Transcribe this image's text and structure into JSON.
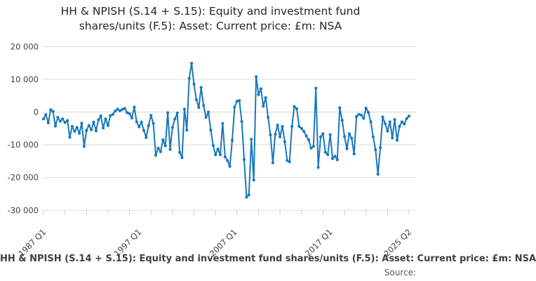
{
  "title": {
    "line1": "HH & NPISH (S.14 + S.15): Equity and investment fund",
    "line2": "shares/units (F.5): Asset: Current price: £m: NSA"
  },
  "footer": {
    "series_caption": "HH & NPISH (S.14 + S.15): Equity and investment fund shares/units (F.5): Asset: Current price: £m: NSA",
    "source_label": "Source:"
  },
  "colors": {
    "line": "#1878be",
    "grid": "#d9d9d9",
    "axis_tick": "#c3d0e8",
    "tick_text": "#414042",
    "title_text": "#262626",
    "source_text": "#58595b"
  },
  "chart_data": {
    "type": "line",
    "title": "HH & NPISH (S.14 + S.15): Equity and investment fund shares/units (F.5): Asset: Current price: £m: NSA",
    "xlabel": "",
    "ylabel": "",
    "x_start": "1987 Q1",
    "x_end": "2025 Q2",
    "frequency": "quarterly",
    "ylim": [
      -30000,
      20000
    ],
    "grid": "horizontal",
    "legend": "none",
    "markers": true,
    "y_tick_values": [
      20000,
      10000,
      0,
      -10000,
      -20000,
      -30000
    ],
    "y_tick_labels": [
      "20 000",
      "10 000",
      "0",
      "-10 000",
      "-20 000",
      "-30 000"
    ],
    "x_tick_labels": [
      "1987 Q1",
      "1997 Q1",
      "2007 Q1",
      "2017 Q1",
      "2025 Q2"
    ],
    "x_tick_quarter_index": [
      0,
      40,
      80,
      120,
      153
    ],
    "minor_tick_every_quarters": 9,
    "values": [
      -2100,
      -800,
      -3300,
      700,
      200,
      -4300,
      -1600,
      -2800,
      -2100,
      -3200,
      -2600,
      -7700,
      -4400,
      -5900,
      -4700,
      -6500,
      -3400,
      -10500,
      -5600,
      -4100,
      -5400,
      -3100,
      -5700,
      -2400,
      -1200,
      -4900,
      -2100,
      -4100,
      -1100,
      -700,
      300,
      900,
      400,
      800,
      1100,
      -200,
      -500,
      -1800,
      1500,
      -3000,
      -4500,
      -3100,
      -5600,
      -7800,
      -4100,
      -1000,
      -3500,
      -13200,
      -11000,
      -12100,
      -8500,
      -10300,
      -200,
      -11400,
      -4700,
      -2100,
      -300,
      -12300,
      -13900,
      900,
      -5500,
      10300,
      14900,
      8500,
      3800,
      1400,
      7500,
      2000,
      -1600,
      0,
      -5500,
      -10200,
      -13000,
      -11300,
      -13000,
      -3500,
      -13700,
      -14800,
      -16600,
      -8700,
      1500,
      3300,
      3500,
      -2900,
      -14500,
      -26000,
      -25300,
      -8300,
      -20800,
      10800,
      5300,
      7100,
      1800,
      4400,
      -1600,
      -7000,
      -15500,
      -6800,
      -4000,
      -7600,
      -4400,
      -9100,
      -14800,
      -15200,
      -4400,
      1700,
      1000,
      -4400,
      -5000,
      -5900,
      -7300,
      -8500,
      -11000,
      -10500,
      7300,
      -16900,
      -7600,
      -6600,
      -12300,
      -13000,
      -6900,
      -14200,
      -13500,
      -14600,
      1300,
      -2500,
      -7500,
      -11200,
      -6600,
      -8000,
      -12800,
      -1400,
      -700,
      -900,
      -1900,
      1200,
      -100,
      -3000,
      -7600,
      -11500,
      -19000,
      -10900,
      -1500,
      -3500,
      -5800,
      -3000,
      -7900,
      -2300,
      -8600,
      -4400,
      -3000,
      -3700,
      -2000,
      -1200
    ]
  }
}
